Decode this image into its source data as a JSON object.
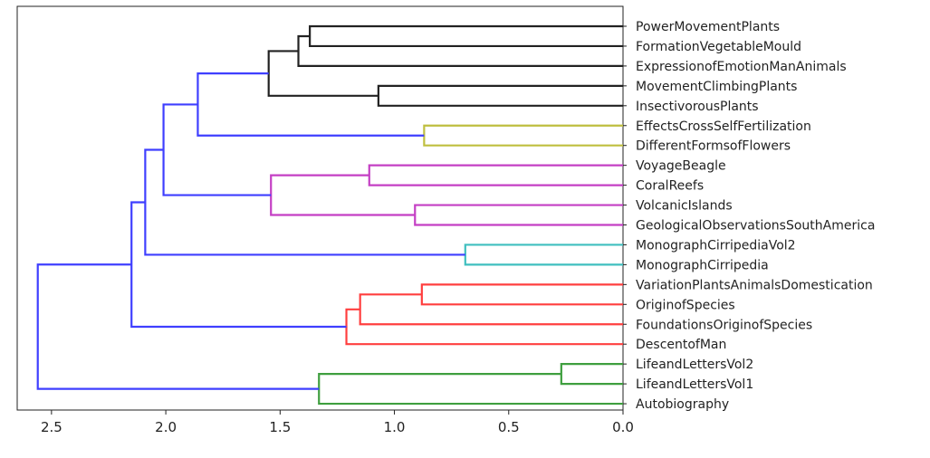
{
  "chart_data": {
    "type": "dendrogram",
    "orientation": "left",
    "xlim": [
      2.65,
      0.0
    ],
    "x_ticks": [
      2.5,
      2.0,
      1.5,
      1.0,
      0.5,
      0.0
    ],
    "x_tick_labels": [
      "2.5",
      "2.0",
      "1.5",
      "1.0",
      "0.5",
      "0.0"
    ],
    "leaves": [
      "PowerMovementPlants",
      "FormationVegetableMould",
      "ExpressionofEmotionManAnimals",
      "MovementClimbingPlants",
      "InsectivorousPlants",
      "EffectsCrossSelfFertilization",
      "DifferentFormsofFlowers",
      "VoyageBeagle",
      "CoralReefs",
      "VolcanicIslands",
      "GeologicalObservationsSouthAmerica",
      "MonographCirripediaVol2",
      "MonographCirripedia",
      "VariationPlantsAnimalsDomestication",
      "OriginofSpecies",
      "FoundationsOriginofSpecies",
      "DescentofMan",
      "LifeandLettersVol2",
      "LifeandLettersVol1",
      "Autobiography"
    ],
    "merges": [
      {
        "id": "m1",
        "left": "L0",
        "right": "L1",
        "height": 1.37,
        "color": "#222222"
      },
      {
        "id": "m2",
        "left": "m1",
        "right": "L2",
        "height": 1.42,
        "color": "#222222"
      },
      {
        "id": "m3",
        "left": "L3",
        "right": "L4",
        "height": 1.07,
        "color": "#222222"
      },
      {
        "id": "m4",
        "left": "m2",
        "right": "m3",
        "height": 1.55,
        "color": "#222222"
      },
      {
        "id": "m5",
        "left": "L5",
        "right": "L6",
        "height": 0.87,
        "color": "#bfbf3f"
      },
      {
        "id": "m6",
        "left": "m4",
        "right": "m5",
        "height": 1.86,
        "color": "#3f3fff"
      },
      {
        "id": "m7",
        "left": "L7",
        "right": "L8",
        "height": 1.11,
        "color": "#c43fc4"
      },
      {
        "id": "m8",
        "left": "L9",
        "right": "L10",
        "height": 0.91,
        "color": "#c43fc4"
      },
      {
        "id": "m9",
        "left": "m7",
        "right": "m8",
        "height": 1.54,
        "color": "#c43fc4"
      },
      {
        "id": "m10",
        "left": "m6",
        "right": "m9",
        "height": 2.01,
        "color": "#3f3fff"
      },
      {
        "id": "m11",
        "left": "L11",
        "right": "L12",
        "height": 0.69,
        "color": "#3fbfbf"
      },
      {
        "id": "m12",
        "left": "m10",
        "right": "m11",
        "height": 2.09,
        "color": "#3f3fff"
      },
      {
        "id": "m13",
        "left": "L13",
        "right": "L14",
        "height": 0.88,
        "color": "#ff3f3f"
      },
      {
        "id": "m14",
        "left": "m13",
        "right": "L15",
        "height": 1.15,
        "color": "#ff3f3f"
      },
      {
        "id": "m15",
        "left": "m14",
        "right": "L16",
        "height": 1.21,
        "color": "#ff3f3f"
      },
      {
        "id": "m16",
        "left": "m12",
        "right": "m15",
        "height": 2.15,
        "color": "#3f3fff"
      },
      {
        "id": "m17",
        "left": "L17",
        "right": "L18",
        "height": 0.27,
        "color": "#3f9f3f"
      },
      {
        "id": "m18",
        "left": "m17",
        "right": "L19",
        "height": 1.33,
        "color": "#3f9f3f"
      },
      {
        "id": "m19",
        "left": "m16",
        "right": "m18",
        "height": 2.56,
        "color": "#3f3fff"
      }
    ]
  }
}
